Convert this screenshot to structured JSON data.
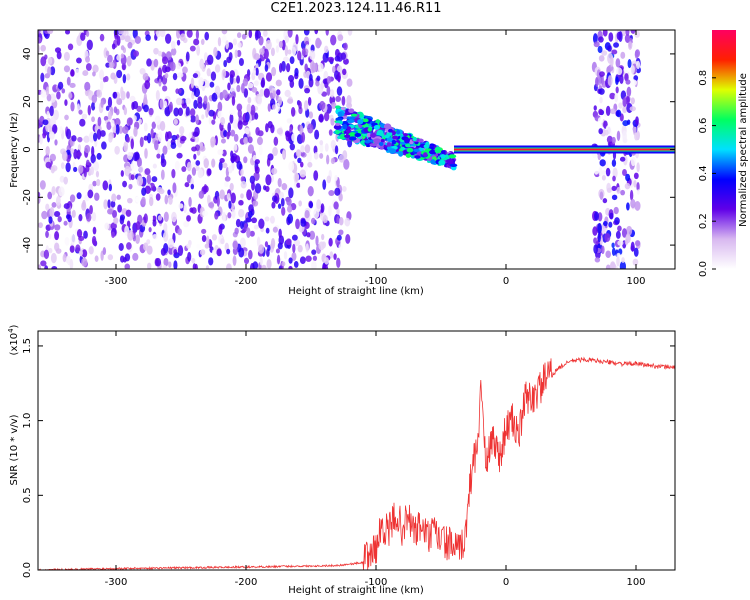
{
  "title": "C2E1.2023.124.11.46.R11",
  "chart_data": [
    {
      "type": "heatmap",
      "xlabel": "Height of straight line (km)",
      "ylabel": "Frequency (Hz)",
      "xlim": [
        -360,
        130
      ],
      "ylim": [
        -50,
        50
      ],
      "xticks": [
        -300,
        -200,
        -100,
        0,
        100
      ],
      "yticks": [
        -40,
        -20,
        0,
        20,
        40
      ],
      "colorbar": {
        "label": "Normalized spectral amplitude",
        "range": [
          0.0,
          1.0
        ],
        "ticks": [
          0.0,
          0.2,
          0.4,
          0.6,
          0.8
        ],
        "tick_labels": [
          "0.0",
          "0.2",
          "0.4",
          "0.6",
          "0.8"
        ],
        "colors": [
          "#ffffff",
          "#d8b8f0",
          "#6000e8",
          "#0000ff",
          "#00e0ff",
          "#00ff60",
          "#e0ff00",
          "#ff2000",
          "#ff0060"
        ]
      },
      "regions": [
        {
          "name": "broadband noise",
          "x_range": [
            -360,
            -120
          ],
          "freq_range": [
            -50,
            50
          ],
          "level": 0.3
        },
        {
          "name": "spreading tone",
          "x_range": [
            -130,
            -40
          ],
          "freq_center_start": 12,
          "freq_center_end": -5,
          "level": 0.5
        },
        {
          "name": "carrier line",
          "x_range": [
            -40,
            130
          ],
          "freq": 0,
          "level": 0.95
        },
        {
          "name": "second noise band",
          "x_range": [
            68,
            102
          ],
          "freq_range": [
            -50,
            50
          ],
          "level": 0.35
        }
      ]
    },
    {
      "type": "line",
      "xlabel": "Height of straight line (km)",
      "ylabel": "SNR (10 * v/v)",
      "yscale_label": "(x10",
      "yscale_exp": "4",
      "yscale_close": ")",
      "xlim": [
        -360,
        130
      ],
      "ylim": [
        0,
        1.6
      ],
      "xticks": [
        -300,
        -200,
        -100,
        0,
        100
      ],
      "yticks": [
        "0.0",
        "0.5",
        "1.0",
        "1.5"
      ],
      "color": "#ee3333",
      "series": [
        {
          "x": [
            -360,
            -300,
            -200,
            -130,
            -110,
            -100,
            -95,
            -90,
            -85,
            -80,
            -75,
            -70,
            -65,
            -60,
            -55,
            -50,
            -45,
            -40,
            -35,
            -30,
            -28,
            -25,
            -22,
            -19,
            -17,
            -15,
            -10,
            -5,
            0,
            5,
            10,
            15,
            20,
            25,
            30,
            35,
            40,
            50,
            60,
            70,
            80,
            90,
            100,
            110,
            120,
            130
          ],
          "y": [
            0.0,
            0.01,
            0.02,
            0.03,
            0.05,
            0.15,
            0.3,
            0.25,
            0.38,
            0.28,
            0.35,
            0.25,
            0.3,
            0.22,
            0.25,
            0.2,
            0.18,
            0.15,
            0.12,
            0.3,
            0.55,
            0.75,
            0.8,
            1.3,
            0.85,
            0.7,
            0.9,
            0.75,
            0.95,
            1.0,
            0.9,
            1.15,
            1.15,
            1.2,
            1.28,
            1.3,
            1.35,
            1.4,
            1.41,
            1.4,
            1.39,
            1.38,
            1.38,
            1.37,
            1.36,
            1.36
          ]
        }
      ]
    }
  ]
}
